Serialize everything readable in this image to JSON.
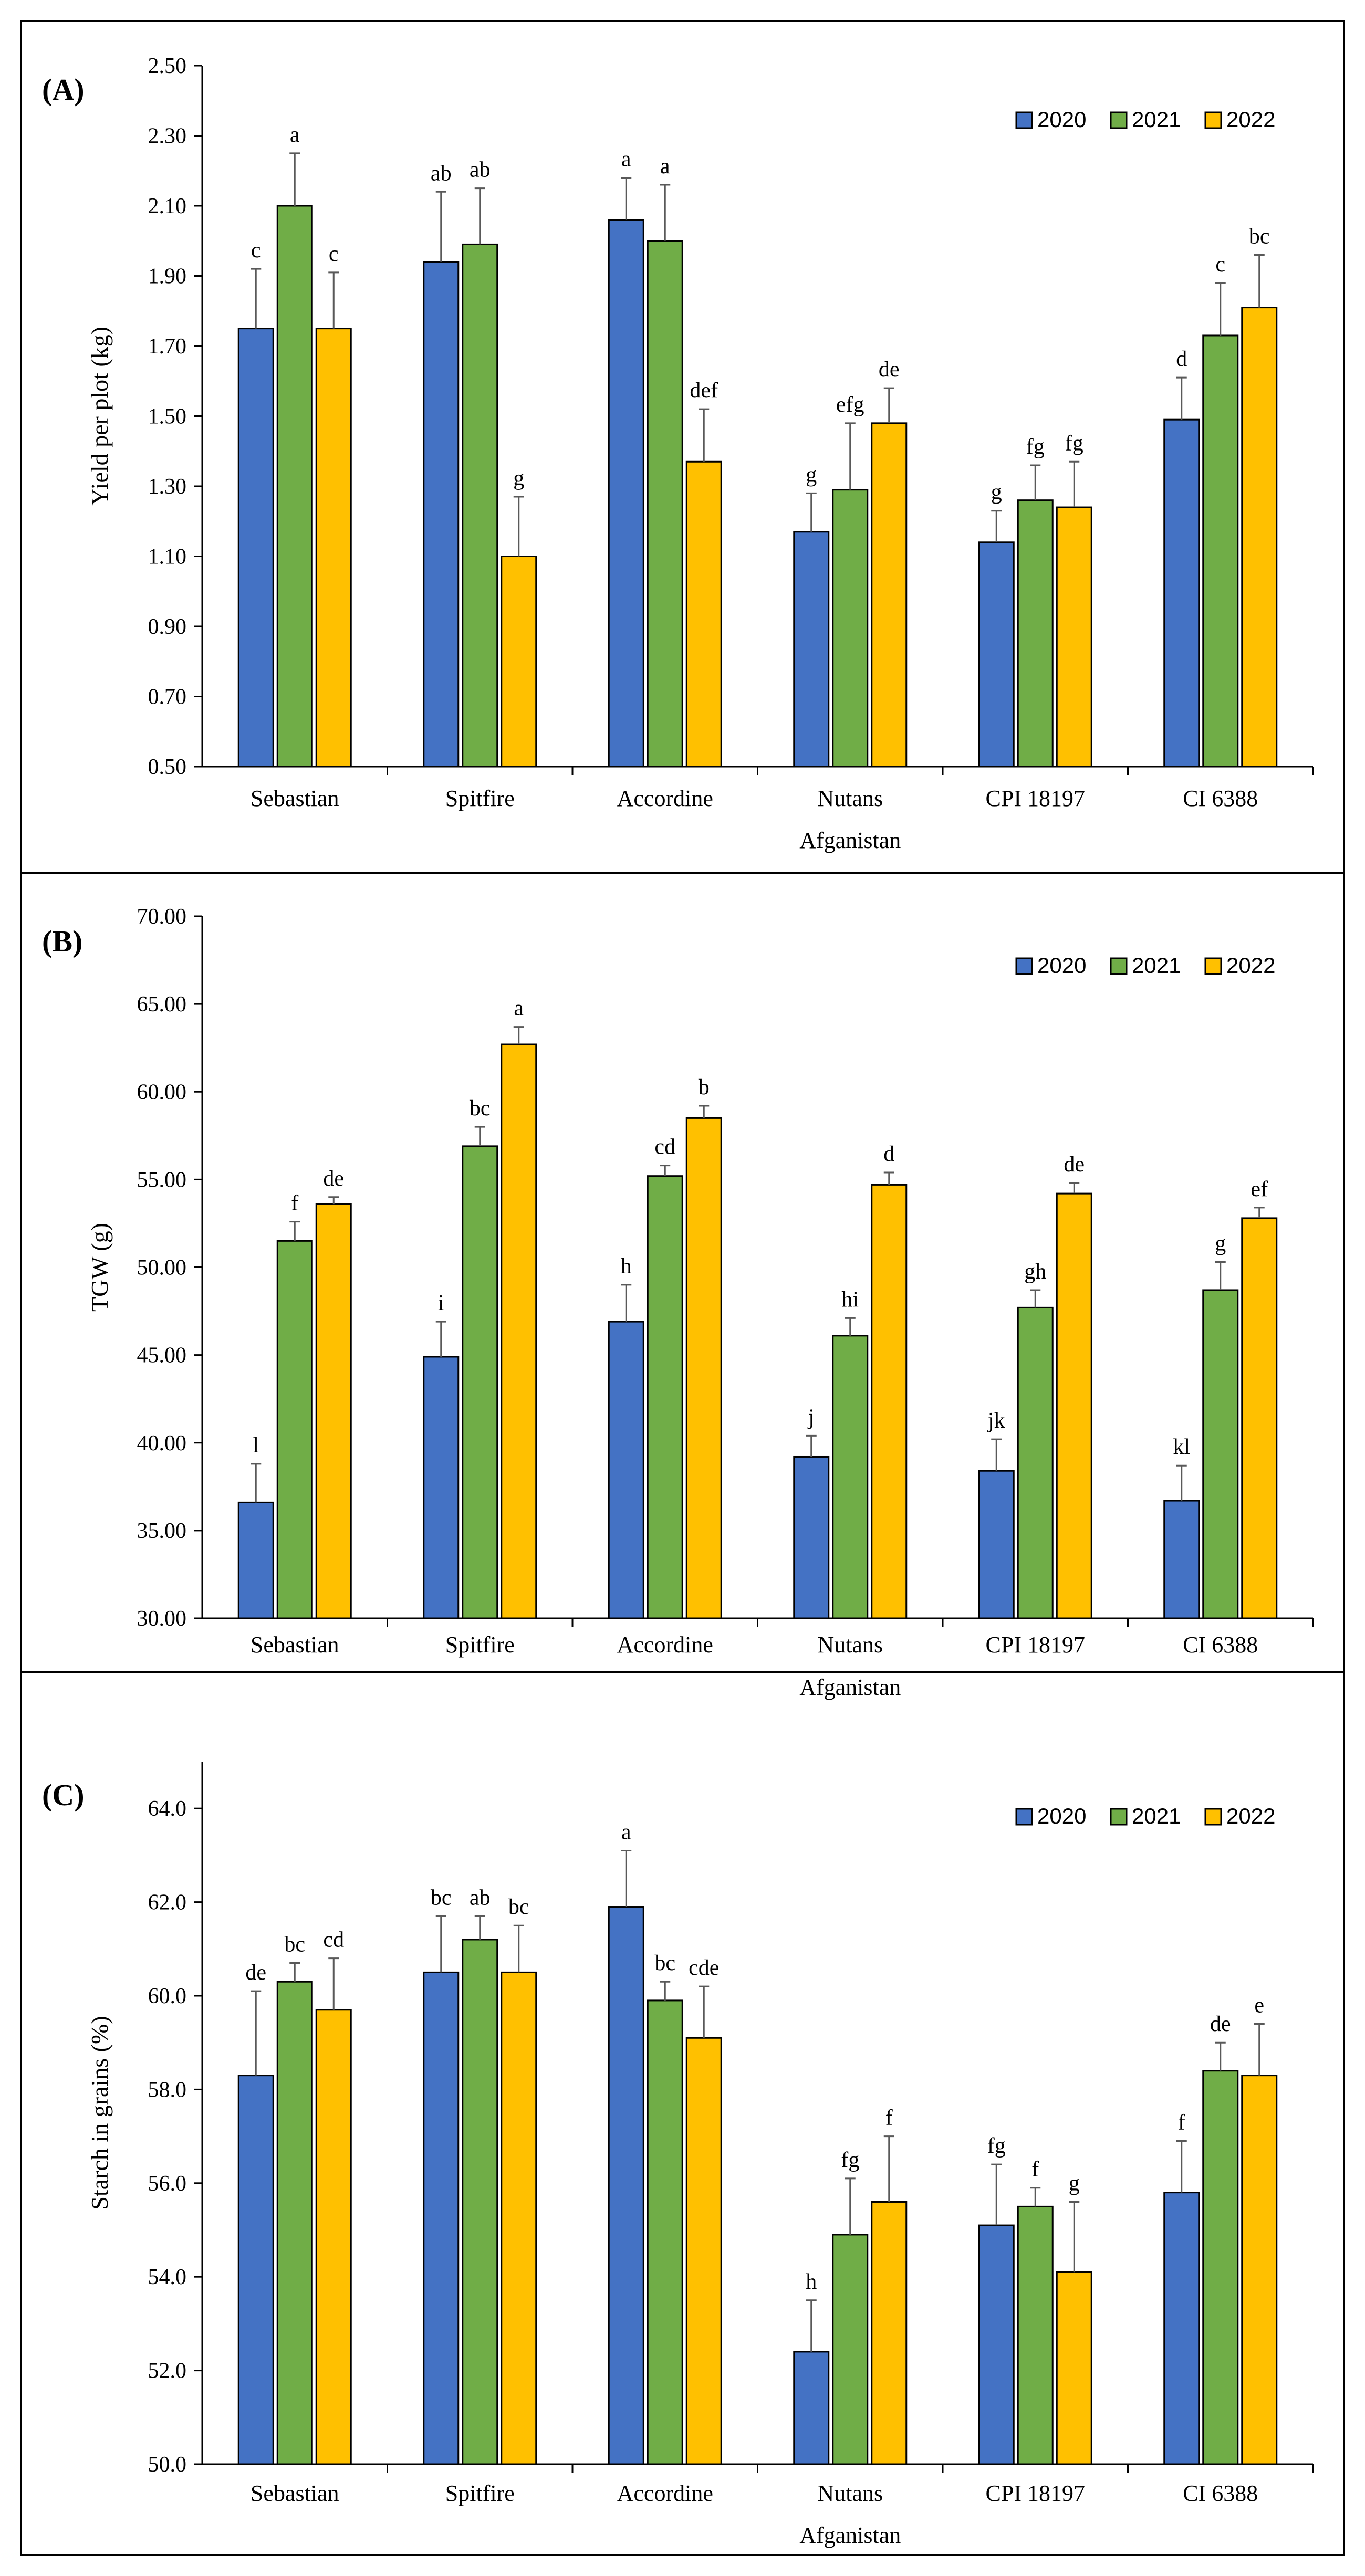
{
  "colors": {
    "2020": "#4472C4",
    "2021": "#70AD47",
    "2022": "#FFC000",
    "error_bar": "#595959"
  },
  "chart_data": [
    {
      "type": "bar",
      "panel_label": "(A)",
      "ylabel": "Yield per plot (kg)",
      "ylim": [
        0.5,
        2.5
      ],
      "yticks": [
        "0.50",
        "0.70",
        "0.90",
        "1.10",
        "1.30",
        "1.50",
        "1.70",
        "1.90",
        "2.10",
        "2.30",
        "2.50"
      ],
      "categories": [
        "Sebastian",
        "Spitfire",
        "Accordine",
        "Nutans Afganistan",
        "CPI 18197",
        "CI 6388"
      ],
      "category_lines": [
        [
          "Sebastian"
        ],
        [
          "Spitfire"
        ],
        [
          "Accordine"
        ],
        [
          "Nutans",
          "Afganistan"
        ],
        [
          "CPI 18197"
        ],
        [
          "CI 6388"
        ]
      ],
      "series": [
        {
          "name": "2020",
          "values": [
            1.75,
            1.94,
            2.06,
            1.17,
            1.14,
            1.49
          ],
          "errors": [
            0.17,
            0.2,
            0.12,
            0.11,
            0.09,
            0.12
          ],
          "letters": [
            "c",
            "ab",
            "a",
            "g",
            "g",
            "d"
          ]
        },
        {
          "name": "2021",
          "values": [
            2.1,
            1.99,
            2.0,
            1.29,
            1.26,
            1.73
          ],
          "errors": [
            0.15,
            0.16,
            0.16,
            0.19,
            0.1,
            0.15
          ],
          "letters": [
            "a",
            "ab",
            "a",
            "efg",
            "fg",
            "c"
          ]
        },
        {
          "name": "2022",
          "values": [
            1.75,
            1.1,
            1.37,
            1.48,
            1.24,
            1.81
          ],
          "errors": [
            0.16,
            0.17,
            0.15,
            0.1,
            0.13,
            0.15
          ],
          "letters": [
            "c",
            "g",
            "def",
            "de",
            "fg",
            "bc"
          ]
        }
      ],
      "legend": [
        "2020",
        "2021",
        "2022"
      ],
      "legend_position": "top-right"
    },
    {
      "type": "bar",
      "panel_label": "(B)",
      "ylabel": "TGW (g)",
      "ylim": [
        30,
        70
      ],
      "yticks": [
        "30.00",
        "35.00",
        "40.00",
        "45.00",
        "50.00",
        "55.00",
        "60.00",
        "65.00",
        "70.00"
      ],
      "categories": [
        "Sebastian",
        "Spitfire",
        "Accordine",
        "Nutans Afganistan",
        "CPI 18197",
        "CI 6388"
      ],
      "category_lines": [
        [
          "Sebastian"
        ],
        [
          "Spitfire"
        ],
        [
          "Accordine"
        ],
        [
          "Nutans",
          "Afganistan"
        ],
        [
          "CPI 18197"
        ],
        [
          "CI 6388"
        ]
      ],
      "series": [
        {
          "name": "2020",
          "values": [
            36.6,
            44.9,
            46.9,
            39.2,
            38.4,
            36.7
          ],
          "errors": [
            2.2,
            2.0,
            2.1,
            1.2,
            1.8,
            2.0
          ],
          "letters": [
            "l",
            "i",
            "h",
            "j",
            "jk",
            "kl"
          ]
        },
        {
          "name": "2021",
          "values": [
            51.5,
            56.9,
            55.2,
            46.1,
            47.7,
            48.7
          ],
          "errors": [
            1.1,
            1.1,
            0.6,
            1.0,
            1.0,
            1.6
          ],
          "letters": [
            "f",
            "bc",
            "cd",
            "hi",
            "gh",
            "g"
          ]
        },
        {
          "name": "2022",
          "values": [
            53.6,
            62.7,
            58.5,
            54.7,
            54.2,
            52.8
          ],
          "errors": [
            0.4,
            1.0,
            0.7,
            0.7,
            0.6,
            0.6
          ],
          "letters": [
            "de",
            "a",
            "b",
            "d",
            "de",
            "ef"
          ]
        }
      ],
      "legend": [
        "2020",
        "2021",
        "2022"
      ],
      "legend_position": "top-right"
    },
    {
      "type": "bar",
      "panel_label": "(C)",
      "ylabel": "Starch in grains (%)",
      "ylim": [
        50,
        65
      ],
      "yticks": [
        "50.0",
        "52.0",
        "54.0",
        "56.0",
        "58.0",
        "60.0",
        "62.0",
        "64.0"
      ],
      "categories": [
        "Sebastian",
        "Spitfire",
        "Accordine",
        "Nutans Afganistan",
        "CPI 18197",
        "CI 6388"
      ],
      "category_lines": [
        [
          "Sebastian"
        ],
        [
          "Spitfire"
        ],
        [
          "Accordine"
        ],
        [
          "Nutans",
          "Afganistan"
        ],
        [
          "CPI 18197"
        ],
        [
          "CI 6388"
        ]
      ],
      "series": [
        {
          "name": "2020",
          "values": [
            58.3,
            60.5,
            61.9,
            52.4,
            55.1,
            55.8
          ],
          "errors": [
            1.8,
            1.2,
            1.2,
            1.1,
            1.3,
            1.1
          ],
          "letters": [
            "de",
            "bc",
            "a",
            "h",
            "fg",
            "f"
          ]
        },
        {
          "name": "2021",
          "values": [
            60.3,
            61.2,
            59.9,
            54.9,
            55.5,
            58.4
          ],
          "errors": [
            0.4,
            0.5,
            0.4,
            1.2,
            0.4,
            0.6
          ],
          "letters": [
            "bc",
            "ab",
            "bc",
            "fg",
            "f",
            "de"
          ]
        },
        {
          "name": "2022",
          "values": [
            59.7,
            60.5,
            59.1,
            55.6,
            54.1,
            58.3
          ],
          "errors": [
            1.1,
            1.0,
            1.1,
            1.4,
            1.5,
            1.1
          ],
          "letters": [
            "cd",
            "bc",
            "cde",
            "f",
            "g",
            "e"
          ]
        }
      ],
      "legend": [
        "2020",
        "2021",
        "2022"
      ],
      "legend_position": "top-right"
    }
  ]
}
